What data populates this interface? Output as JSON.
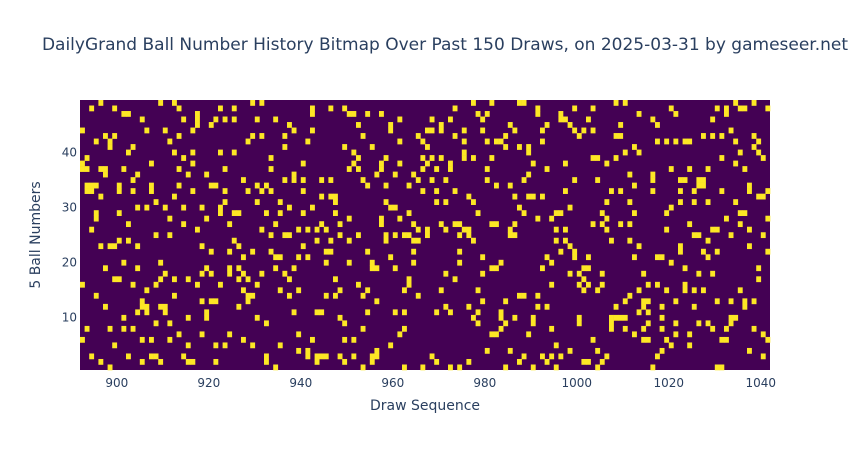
{
  "chart_data": {
    "type": "heatmap",
    "title": "DailyGrand Ball Number History Bitmap Over Past 150 Draws, on 2025-03-31 by gameseer.net",
    "xlabel": "Draw Sequence",
    "ylabel": "5 Ball Numbers",
    "x_range": [
      892,
      1042
    ],
    "y_range": [
      1,
      49
    ],
    "xticks": [
      900,
      920,
      940,
      960,
      980,
      1000,
      1020,
      1040
    ],
    "yticks": [
      10,
      20,
      30,
      40
    ],
    "draw_start": 892,
    "draw_count": 150,
    "max_ball": 49,
    "balls_per_draw": 5,
    "colorscale": {
      "off": "#440154",
      "on": "#fde725"
    },
    "grid": false,
    "legend": "none"
  }
}
